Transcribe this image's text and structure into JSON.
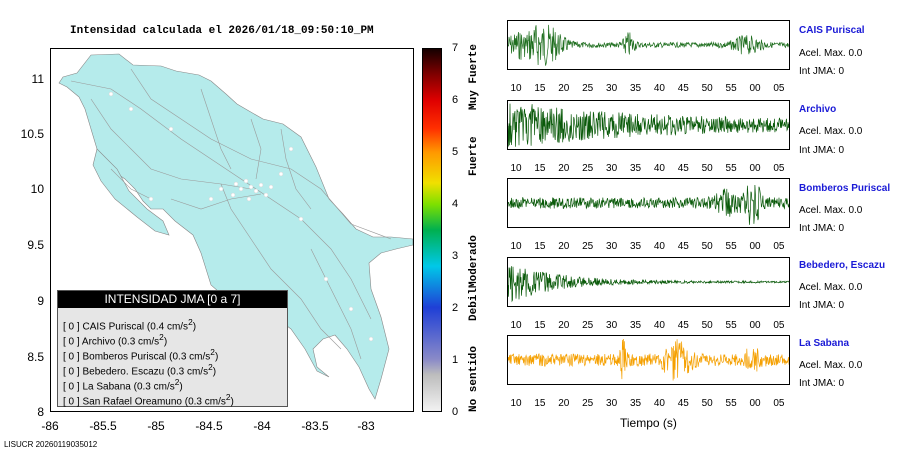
{
  "map": {
    "title": "Intensidad calculada el 2026/01/18_09:50:10_PM",
    "y_ticks": [
      "11",
      "10.5",
      "10",
      "9.5",
      "9",
      "8.5",
      "8"
    ],
    "x_ticks": [
      "-86",
      "-85.5",
      "-85",
      "-84.5",
      "-84",
      "-83.5",
      "-83"
    ],
    "land_color": "#b5ebeb",
    "sea_color": "#ffffff"
  },
  "legend": {
    "header": "INTENSIDAD JMA [0 a 7]",
    "rows": [
      {
        "bracket": "[ 0 ]",
        "label": "CAIS Puriscal (0.4 cm/s",
        "sup": "2",
        "close": ")"
      },
      {
        "bracket": "[ 0 ]",
        "label": "Archivo (0.3 cm/s",
        "sup": "2",
        "close": ")"
      },
      {
        "bracket": "[ 0 ]",
        "label": "Bomberos Puriscal (0.3 cm/s",
        "sup": "2",
        "close": ")"
      },
      {
        "bracket": "[ 0 ]",
        "label": "Bebedero. Escazu (0.3 cm/s",
        "sup": "2",
        "close": ")"
      },
      {
        "bracket": "[ 0 ]",
        "label": "La Sabana (0.3 cm/s",
        "sup": "2",
        "close": ")"
      },
      {
        "bracket": "[ 0 ]",
        "label": "San Rafael Oreamuno (0.3 cm/s",
        "sup": "2",
        "close": ")"
      }
    ]
  },
  "colorbar": {
    "ticks": [
      "7",
      "6",
      "5",
      "4",
      "3",
      "2",
      "1",
      "0"
    ],
    "labels": [
      "Muy Fuerte",
      "Fuerte",
      "Moderado",
      "Debil",
      "No sentido"
    ]
  },
  "waveforms": {
    "time_ticks": [
      "10",
      "15",
      "20",
      "25",
      "30",
      "35",
      "40",
      "45",
      "50",
      "55",
      "00",
      "05"
    ],
    "time_label": "Tiempo (s)",
    "stations": [
      {
        "name": "CAIS Puriscal",
        "acel": "Acel. Max. 0.0",
        "int": "Int JMA: 0",
        "color": "#1e6e1e"
      },
      {
        "name": "Archivo",
        "acel": "Acel. Max. 0.0",
        "int": "Int JMA: 0",
        "color": "#0a5a0a"
      },
      {
        "name": "Bomberos Puriscal",
        "acel": "Acel. Max. 0.0",
        "int": "Int JMA: 0",
        "color": "#0a5a0a"
      },
      {
        "name": "Bebedero, Escazu",
        "acel": "Acel. Max. 0.0",
        "int": "Int JMA: 0",
        "color": "#0a5a0a"
      },
      {
        "name": "La Sabana",
        "acel": "Acel. Max. 0.0",
        "int": "Int JMA: 0",
        "color": "#f5a000"
      }
    ]
  },
  "footer": "LISUCR 20260119035012"
}
